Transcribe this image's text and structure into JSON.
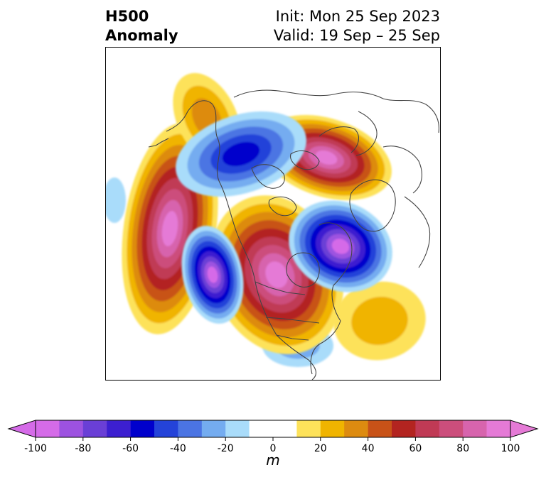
{
  "header": {
    "title_line1": "H500",
    "title_line2": "Anomaly",
    "init_text": "Init: Mon 25 Sep 2023",
    "valid_text": "Valid: 19 Sep – 25 Sep"
  },
  "map": {
    "projection": "north-polar-stereographic",
    "variable": "500 hPa geopotential height anomaly",
    "features": [
      {
        "name": "positive-anomaly-northern-europe",
        "sign": "positive",
        "peak_m": 100
      },
      {
        "name": "positive-anomaly-canada",
        "sign": "positive",
        "peak_m": 100
      },
      {
        "name": "positive-anomaly-north-pacific",
        "sign": "positive",
        "peak_m": 100
      },
      {
        "name": "positive-anomaly-alaska",
        "sign": "positive",
        "peak_m": 30
      },
      {
        "name": "positive-anomaly-north-atlantic",
        "sign": "positive",
        "peak_m": 20
      },
      {
        "name": "negative-anomaly-north-atlantic",
        "sign": "negative",
        "peak_m": -100
      },
      {
        "name": "negative-anomaly-west-coast-us",
        "sign": "negative",
        "peak_m": -100
      },
      {
        "name": "negative-anomaly-arctic",
        "sign": "negative",
        "peak_m": -50
      },
      {
        "name": "negative-anomaly-southeast-us",
        "sign": "negative",
        "peak_m": -20
      },
      {
        "name": "negative-anomaly-west-pacific",
        "sign": "negative",
        "peak_m": -20
      }
    ]
  },
  "colorbar": {
    "ticks": [
      "-100",
      "-80",
      "-60",
      "-40",
      "-20",
      "0",
      "20",
      "40",
      "60",
      "80",
      "100"
    ],
    "unit_label": "m",
    "colors": [
      "#d56be8",
      "#9d52e0",
      "#6a3fd6",
      "#3c1fd0",
      "#0000cc",
      "#2443d9",
      "#4b74e3",
      "#74acf0",
      "#a9dcfa",
      "#ffffff",
      "#ffffff",
      "#fde25a",
      "#f0b400",
      "#dd8b10",
      "#c85218",
      "#b32420",
      "#c03a55",
      "#cc4e7c",
      "#d764ad",
      "#e57ad6"
    ],
    "extend_low_color": "#d56be8",
    "extend_high_color": "#e57ad6"
  }
}
